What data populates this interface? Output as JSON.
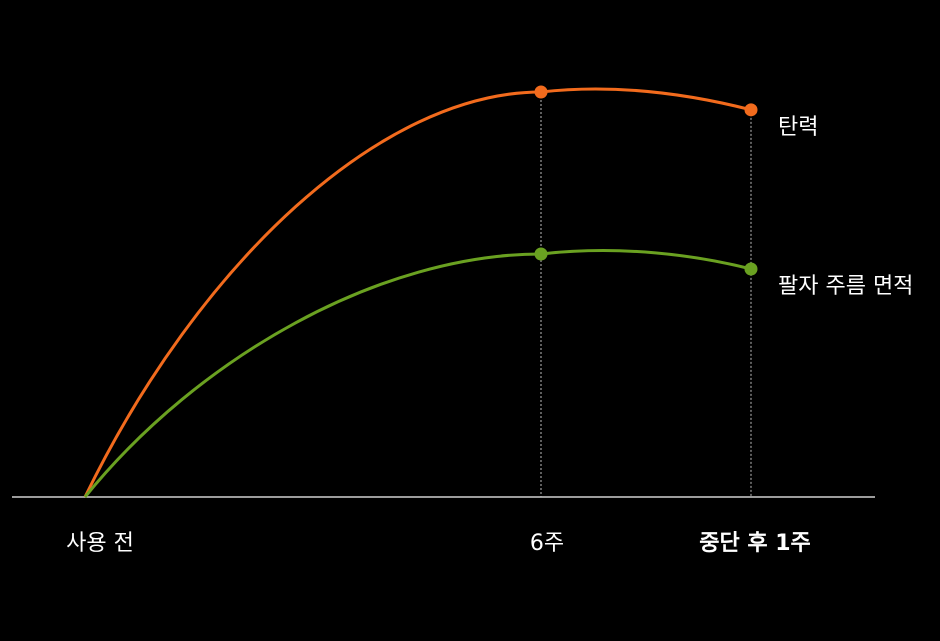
{
  "chart_data": {
    "type": "line",
    "categories": [
      "사용 전",
      "6주",
      "중단 후 1주"
    ],
    "category_colors": [
      "#ffffff",
      "#ffffff",
      "#f26b1d"
    ],
    "series": [
      {
        "name": "탄력",
        "color": "#f26b1d",
        "values": [
          0,
          100,
          95.6
        ]
      },
      {
        "name": "팔자 주름 면적",
        "color": "#6aa121",
        "values": [
          0,
          60,
          56.3
        ]
      }
    ],
    "ylim": [
      0,
      100
    ]
  }
}
